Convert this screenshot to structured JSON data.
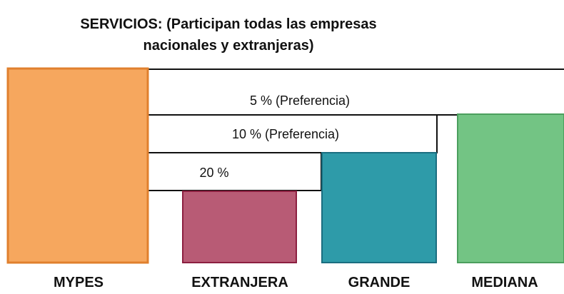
{
  "title": {
    "line1": "SERVICIOS: (Participan todas las empresas",
    "line2": "nacionales y extranjeras)"
  },
  "tiers": [
    "5 % (Preferencia)",
    "10 % (Preferencia)",
    "20 %"
  ],
  "categories": [
    "MYPES",
    "EXTRANJERA",
    "GRANDE",
    "MEDIANA"
  ]
}
